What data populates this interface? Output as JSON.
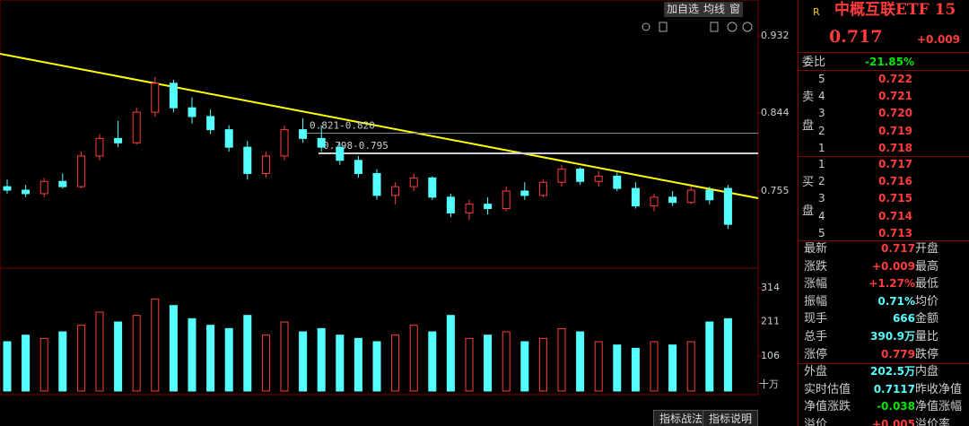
{
  "toolbar": {
    "buttons": [
      "加自选",
      "均线",
      "窗"
    ]
  },
  "chart_data": [
    {
      "type": "candlestick",
      "open": [
        0.76,
        0.756,
        0.752,
        0.766,
        0.76,
        0.795,
        0.815,
        0.81,
        0.845,
        0.878,
        0.85,
        0.84,
        0.825,
        0.805,
        0.775,
        0.795,
        0.825,
        0.815,
        0.805,
        0.79,
        0.775,
        0.75,
        0.76,
        0.77,
        0.748,
        0.73,
        0.74,
        0.735,
        0.755,
        0.75,
        0.765,
        0.78,
        0.766,
        0.772,
        0.758,
        0.738,
        0.748,
        0.742,
        0.756,
        0.758
      ],
      "high": [
        0.768,
        0.762,
        0.77,
        0.775,
        0.8,
        0.82,
        0.835,
        0.85,
        0.885,
        0.882,
        0.862,
        0.848,
        0.83,
        0.812,
        0.8,
        0.83,
        0.838,
        0.83,
        0.81,
        0.795,
        0.78,
        0.765,
        0.775,
        0.772,
        0.752,
        0.745,
        0.748,
        0.76,
        0.765,
        0.768,
        0.785,
        0.782,
        0.778,
        0.776,
        0.765,
        0.752,
        0.755,
        0.76,
        0.76,
        0.762
      ],
      "low": [
        0.752,
        0.748,
        0.748,
        0.758,
        0.758,
        0.79,
        0.805,
        0.808,
        0.84,
        0.845,
        0.832,
        0.82,
        0.8,
        0.768,
        0.77,
        0.79,
        0.81,
        0.8,
        0.785,
        0.77,
        0.745,
        0.74,
        0.755,
        0.745,
        0.725,
        0.722,
        0.728,
        0.732,
        0.745,
        0.748,
        0.76,
        0.762,
        0.76,
        0.755,
        0.735,
        0.732,
        0.738,
        0.74,
        0.74,
        0.712
      ],
      "close": [
        0.756,
        0.752,
        0.766,
        0.76,
        0.795,
        0.815,
        0.81,
        0.845,
        0.878,
        0.85,
        0.84,
        0.825,
        0.805,
        0.775,
        0.795,
        0.825,
        0.815,
        0.805,
        0.79,
        0.775,
        0.75,
        0.76,
        0.77,
        0.748,
        0.73,
        0.74,
        0.735,
        0.755,
        0.75,
        0.765,
        0.78,
        0.766,
        0.772,
        0.758,
        0.738,
        0.748,
        0.742,
        0.756,
        0.745,
        0.717
      ],
      "ylim": [
        0.668,
        0.973
      ],
      "yticks": [
        0.755,
        0.844,
        0.932
      ],
      "annotations": [
        {
          "value": 0.821,
          "text": "0.821-0.820"
        },
        {
          "value": 0.798,
          "text": "0.798-0.795"
        }
      ]
    },
    {
      "type": "bar",
      "unit": "十万",
      "values": [
        150,
        170,
        160,
        180,
        200,
        240,
        210,
        230,
        280,
        260,
        220,
        200,
        190,
        230,
        170,
        210,
        180,
        190,
        170,
        160,
        150,
        170,
        200,
        180,
        230,
        160,
        170,
        180,
        150,
        160,
        190,
        180,
        150,
        140,
        130,
        150,
        140,
        150,
        210,
        220
      ],
      "ylim": [
        0,
        371
      ],
      "yticks": [
        106,
        211,
        314
      ]
    }
  ],
  "quote": {
    "badge": "R",
    "name": "中概互联ETF 15",
    "price": "0.717",
    "change": "+0.009",
    "ratio_label": "委比",
    "ratio": "-21.85%",
    "sell_label": [
      "卖",
      "盘"
    ],
    "buy_label": [
      "买",
      "盘"
    ],
    "sell": [
      {
        "level": "5",
        "price": "0.722"
      },
      {
        "level": "4",
        "price": "0.721"
      },
      {
        "level": "3",
        "price": "0.720"
      },
      {
        "level": "2",
        "price": "0.719"
      },
      {
        "level": "1",
        "price": "0.718"
      }
    ],
    "buy": [
      {
        "level": "1",
        "price": "0.717"
      },
      {
        "level": "2",
        "price": "0.716"
      },
      {
        "level": "3",
        "price": "0.715"
      },
      {
        "level": "4",
        "price": "0.714"
      },
      {
        "level": "5",
        "price": "0.713"
      }
    ],
    "stats": [
      {
        "label": "最新",
        "value": "0.717",
        "label2": "开盘"
      },
      {
        "label": "涨跌",
        "value": "+0.009",
        "label2": "最高"
      },
      {
        "label": "涨幅",
        "value": "+1.27%",
        "label2": "最低"
      },
      {
        "label": "振幅",
        "value": "0.71%",
        "label2": "均价"
      },
      {
        "label": "现手",
        "value": "666",
        "label2": "金额"
      },
      {
        "label": "总手",
        "value": "390.9万",
        "label2": "量比"
      },
      {
        "label": "涨停",
        "value": "0.779",
        "label2": "跌停"
      },
      {
        "label": "外盘",
        "value": "202.5万",
        "label2": "内盘"
      },
      {
        "label": "实时估值",
        "value": "0.7117",
        "label2": "昨收净值"
      },
      {
        "label": "净值涨跌",
        "value": "-0.038",
        "label2": "净值涨幅"
      },
      {
        "label": "溢价",
        "value": "+0.005",
        "label2": "溢价率"
      }
    ]
  },
  "tabs": [
    "指标战法",
    "指标说明"
  ]
}
